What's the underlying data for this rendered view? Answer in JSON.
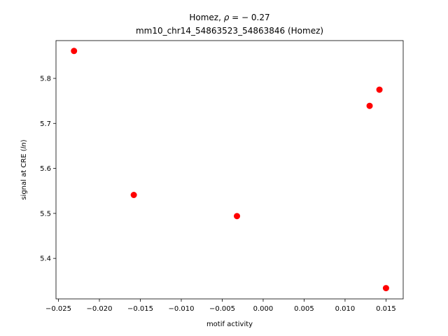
{
  "chart_data": {
    "type": "scatter",
    "title_parts": {
      "prefix": "Homez, ",
      "rho_symbol": "ρ",
      "rho_value": " = − 0.27"
    },
    "subtitle": "mm10_chr14_54863523_54863846 (Homez)",
    "xlabel": "motif activity",
    "ylabel_parts": {
      "prefix": "signal at CRE (",
      "unit": "ln",
      "suffix": ")"
    },
    "xlim": [
      -0.0253,
      0.0171
    ],
    "ylim": [
      5.31,
      5.884
    ],
    "xticks": [
      -0.025,
      -0.02,
      -0.015,
      -0.01,
      -0.005,
      0.0,
      0.005,
      0.01,
      0.015
    ],
    "xtick_labels": [
      "−0.025",
      "−0.020",
      "−0.015",
      "−0.010",
      "−0.005",
      "0.000",
      "0.005",
      "0.010",
      "0.015"
    ],
    "yticks": [
      5.4,
      5.5,
      5.6,
      5.7,
      5.8
    ],
    "ytick_labels": [
      "5.4",
      "5.5",
      "5.6",
      "5.7",
      "5.8"
    ],
    "points": [
      {
        "x": -0.0231,
        "y": 5.861
      },
      {
        "x": -0.0158,
        "y": 5.541
      },
      {
        "x": -0.0032,
        "y": 5.494
      },
      {
        "x": 0.013,
        "y": 5.739
      },
      {
        "x": 0.0142,
        "y": 5.775
      },
      {
        "x": 0.015,
        "y": 5.334
      }
    ],
    "marker_color": "#ff0000",
    "grid": false
  }
}
